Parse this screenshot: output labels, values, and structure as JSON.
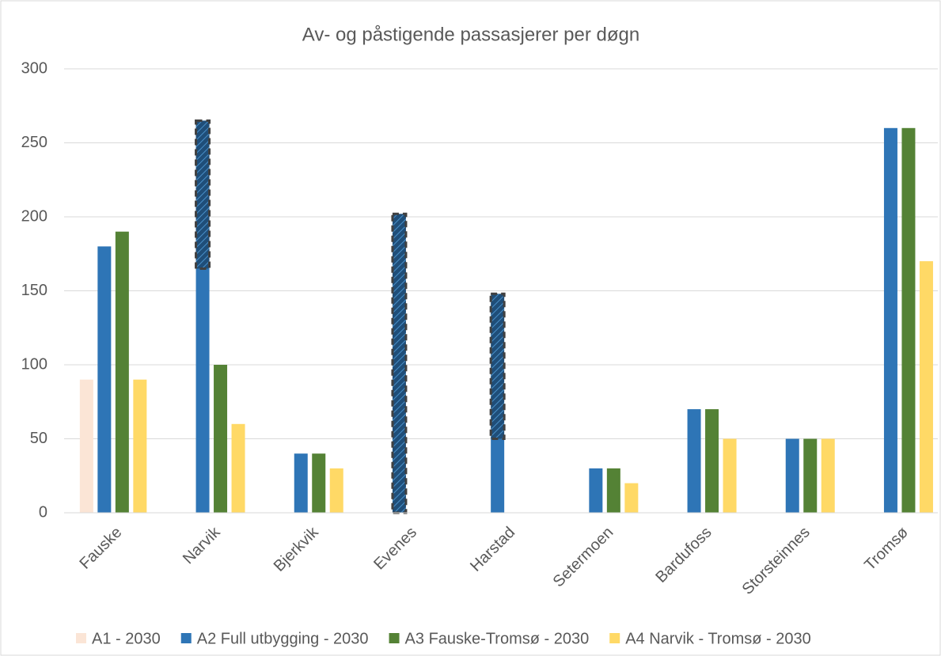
{
  "chart_data": {
    "type": "bar",
    "title": "Av- og påstigende passasjerer per døgn",
    "categories": [
      "Fauske",
      "Narvik",
      "Bjerkvik",
      "Evenes",
      "Harstad",
      "Setermoen",
      "Bardufoss",
      "Storsteinnes",
      "Tromsø"
    ],
    "series": [
      {
        "name": "A1 - 2030",
        "color": "#fbe5d6",
        "values": [
          90,
          null,
          null,
          null,
          null,
          null,
          null,
          null,
          null
        ]
      },
      {
        "name": "A2 Full utbygging - 2030",
        "color": "#2e75b6",
        "values": [
          180,
          265,
          40,
          null,
          50,
          30,
          70,
          50,
          260
        ]
      },
      {
        "name": "A3 Fauske-Tromsø - 2030",
        "color": "#548235",
        "values": [
          190,
          100,
          40,
          null,
          null,
          30,
          70,
          50,
          260
        ]
      },
      {
        "name": "A4 Narvik - Tromsø - 2030",
        "color": "#ffd966",
        "values": [
          90,
          60,
          30,
          null,
          null,
          20,
          50,
          50,
          170
        ]
      }
    ],
    "hatched": {
      "low": [
        null,
        165,
        null,
        0,
        50,
        null,
        null,
        null,
        null
      ],
      "high": [
        null,
        265,
        null,
        202,
        148,
        null,
        null,
        null,
        null
      ]
    },
    "ylim": [
      0,
      300
    ],
    "yticks": [
      0,
      50,
      100,
      150,
      200,
      250,
      300
    ],
    "grid": true,
    "legend": "bottom"
  }
}
